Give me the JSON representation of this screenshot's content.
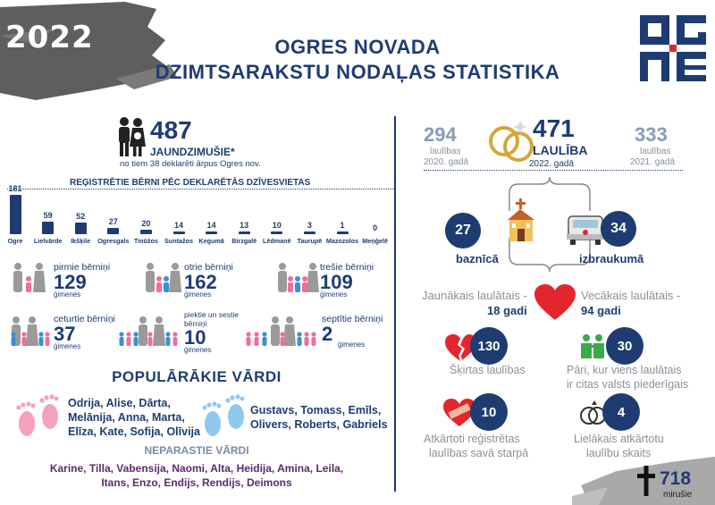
{
  "header": {
    "year": "2022",
    "title_line1": "OGRES NOVADA",
    "title_line2": "DZIMTSARAKSTU NODAĻAS STATISTIKA"
  },
  "births": {
    "total": "487",
    "label": "JAUNDZIMUŠIE*",
    "note": "no tiem 38 deklarēti ārpus Ogres nov.",
    "chart_heading": "REĢISTRĒTIE BĒRNI PĒC DEKLARĒTĀS DZĪVESVIETAS"
  },
  "chart_data": {
    "type": "bar",
    "categories": [
      "Ogre",
      "Lielvārde",
      "Ikšķile",
      "Ogresgals",
      "Tinūžos",
      "Suntažos",
      "Ķegumā",
      "Birzgalē",
      "Lēdmanē",
      "Taurupē",
      "Mazozolos",
      "Meņģelē"
    ],
    "values": [
      181,
      59,
      52,
      27,
      20,
      14,
      14,
      13,
      10,
      3,
      1,
      0
    ],
    "ylim": [
      0,
      181
    ]
  },
  "children_order": [
    {
      "label": "pirmie bērniņi",
      "count": "129",
      "unit": "ģimenes"
    },
    {
      "label": "otrie bērniņi",
      "count": "162",
      "unit": "ģimenes"
    },
    {
      "label": "trešie bērniņi",
      "count": "109",
      "unit": "ģimenes"
    },
    {
      "label": "ceturtie bērniņi",
      "count": "37",
      "unit": "ģimenes"
    },
    {
      "label": "piektie un sestie bērniņi",
      "count": "10",
      "unit": "ģimenes"
    },
    {
      "label": "septītie bērniņi",
      "count": "2",
      "unit": "ģimenes"
    }
  ],
  "names": {
    "heading": "POPULĀRĀKIE VĀRDI",
    "girls_line1": "Odrija, Alise, Dārta,",
    "girls_line2": "Melānija, Anna, Marta,",
    "girls_line3": "Elīza, Kate, Sofija, Olīvija",
    "boys_line1": "Gustavs, Tomass, Emīls,",
    "boys_line2": "Olivers, Roberts, Gabriels",
    "rare_heading": "NEPARASTIE VĀRDI",
    "rare_line1": "Karine, Tilla, Vabensija, Naomi, Alta, Heidija, Amina, Leila,",
    "rare_line2": "Itans, Enzo, Endijs, Rendijs, Deimons"
  },
  "marriages": {
    "prev2020_num": "294",
    "prev2020_l1": "laulības",
    "prev2020_l2": "2020. gadā",
    "total": "471",
    "label": "LAULĪBA",
    "year_label": "2022. gadā",
    "prev2021_num": "333",
    "prev2021_l1": "laulības",
    "prev2021_l2": "2021. gadā",
    "church_num": "27",
    "church_label": "baznīcā",
    "away_num": "34",
    "away_label": "izbraukumā",
    "youngest_l1": "Jaunākais laulātais -",
    "youngest_l2": "18 gadi",
    "oldest_l1": "Vecākais laulātais -",
    "oldest_l2": "94 gadi",
    "divorced_num": "130",
    "divorced_label": "Šķirtas laulības",
    "foreign_num": "30",
    "foreign_l1": "Pāri, kur viens laulātais",
    "foreign_l2": "ir citas valsts piederīgais",
    "repeat_num": "10",
    "repeat_l1": "Atkārtoti reģistrētas",
    "repeat_l2": "laulības savā starpā",
    "max_repeat_num": "4",
    "max_repeat_l1": "Lielākais atkārtotu",
    "max_repeat_l2": "laulību skaits"
  },
  "deaths": {
    "total": "718",
    "label": "mirušie"
  },
  "colors": {
    "navy": "#1e3c72",
    "red": "#e3262e",
    "pink": "#f4a1bf",
    "lightblue": "#8ec9ee",
    "grey": "#8a8f99"
  }
}
